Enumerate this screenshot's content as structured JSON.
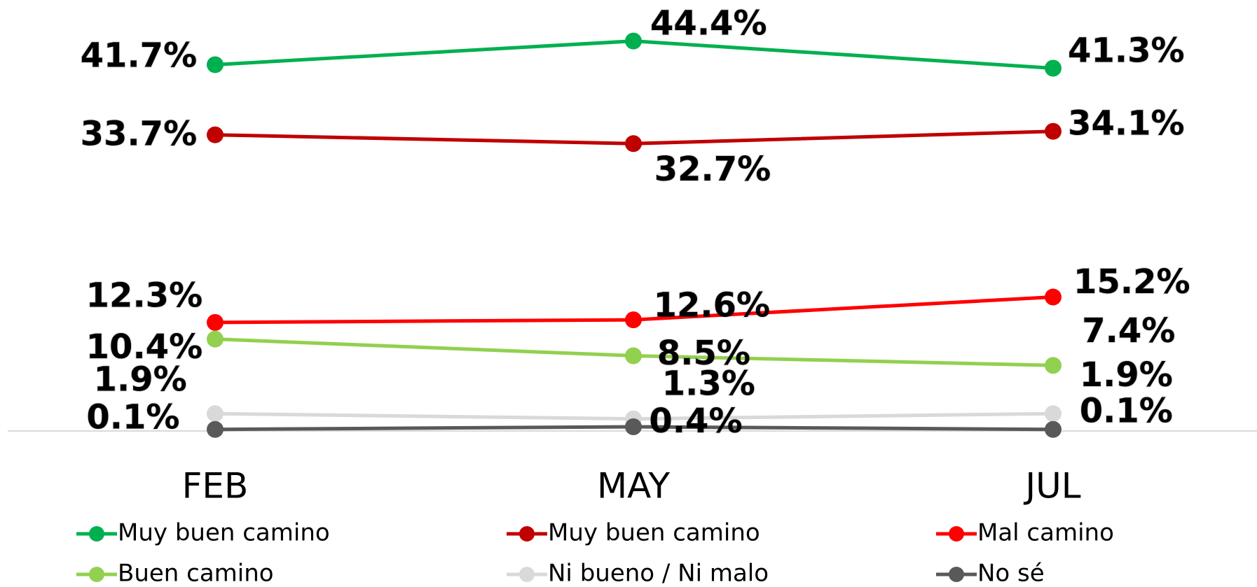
{
  "chart_data": {
    "type": "line",
    "categories": [
      "FEB",
      "MAY",
      "JUL"
    ],
    "ylim": [
      0,
      49
    ],
    "legend": "bottom",
    "series": [
      {
        "name": "Muy buen camino",
        "color": "#00b050",
        "values": [
          41.7,
          44.4,
          41.3
        ],
        "value_labels": [
          "41.7%",
          "44.4%",
          "41.3%"
        ]
      },
      {
        "name": "Muy buen camino",
        "color": "#c00000",
        "values": [
          33.7,
          32.7,
          34.1
        ],
        "value_labels": [
          "33.7%",
          "32.7%",
          "34.1%"
        ]
      },
      {
        "name": "Mal camino",
        "color": "#ff0000",
        "values": [
          12.3,
          12.6,
          15.2
        ],
        "value_labels": [
          "12.3%",
          "12.6%",
          "15.2%"
        ]
      },
      {
        "name": "Buen camino",
        "color": "#92d050",
        "values": [
          10.4,
          8.5,
          7.4
        ],
        "value_labels": [
          "10.4%",
          "8.5%",
          "7.4%"
        ]
      },
      {
        "name": "Ni bueno / Ni malo",
        "color": "#d9d9d9",
        "values": [
          1.9,
          1.3,
          1.9
        ],
        "value_labels": [
          "1.9%",
          "1.3%",
          "1.9%"
        ]
      },
      {
        "name": "No sé",
        "color": "#595959",
        "values": [
          0.1,
          0.4,
          0.1
        ],
        "value_labels": [
          "0.1%",
          "0.4%",
          "0.1%"
        ]
      }
    ]
  }
}
